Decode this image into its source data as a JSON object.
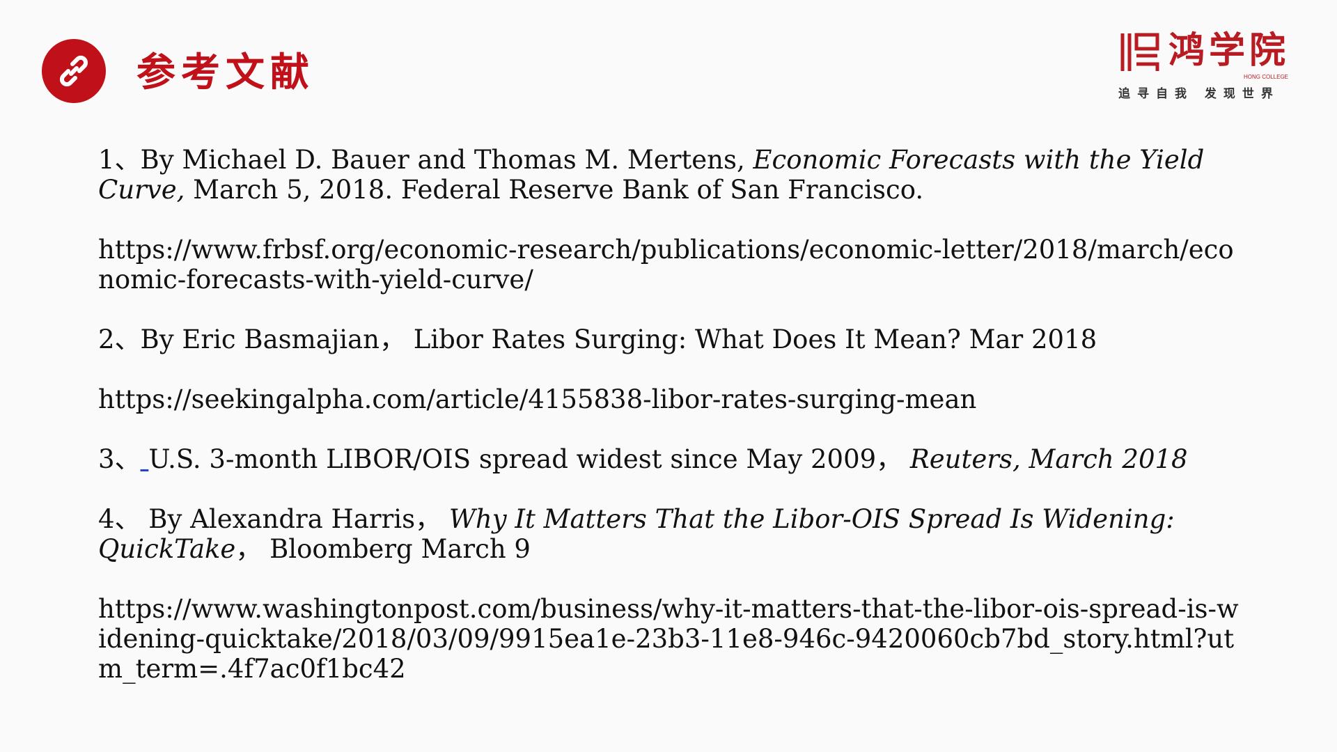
{
  "header": {
    "title": "参考文献",
    "icon": "link-icon",
    "accent_color": "#c0101a"
  },
  "logo": {
    "name": "鸿学院",
    "sub": "HONG COLLEGE",
    "slogan": "追寻自我 发现世界"
  },
  "references": {
    "r1": {
      "num": "1、",
      "authors": "By Michael D. Bauer and Thomas M. Mertens, ",
      "title": "Economic Forecasts with the Yield Curve,",
      "rest": " March 5, 2018. Federal Reserve Bank of San Francisco."
    },
    "url1": "https://www.frbsf.org/economic-research/publications/economic-letter/2018/march/economic-forecasts-with-yield-curve/",
    "r2": {
      "text": "2、By Eric Basmajian， Libor Rates Surging: What Does It Mean? Mar 2018"
    },
    "url2": "https://seekingalpha.com/article/4155838-libor-rates-surging-mean",
    "r3": {
      "num": "3、",
      "text": "U.S. 3-month LIBOR/OIS spread widest since May 2009，",
      "source": "Reuters, March 2018"
    },
    "r4": {
      "num": "4、 By Alexandra Harris，",
      "title": "Why It Matters That the Libor-OIS Spread Is Widening: QuickTake",
      "rest": "， Bloomberg March 9"
    },
    "url4": "https://www.washingtonpost.com/business/why-it-matters-that-the-libor-ois-spread-is-widening-quicktake/2018/03/09/9915ea1e-23b3-11e8-946c-9420060cb7bd_story.html?utm_term=.4f7ac0f1bc42"
  }
}
